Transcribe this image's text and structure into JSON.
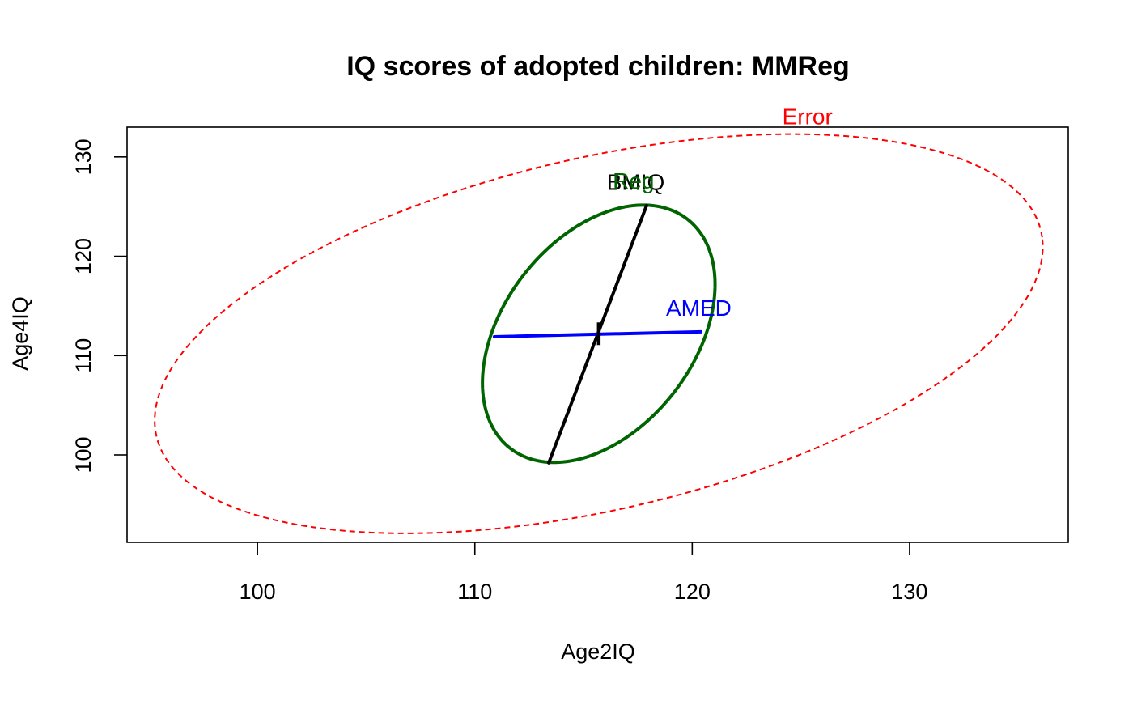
{
  "chart_data": {
    "type": "scatter",
    "title": "IQ scores of adopted children: MMReg",
    "xlabel": "Age2IQ",
    "ylabel": "Age4IQ",
    "xlim": [
      94,
      137.3
    ],
    "ylim": [
      91.2,
      133
    ],
    "xticks": [
      100,
      110,
      120,
      130
    ],
    "yticks": [
      100,
      110,
      120,
      130
    ],
    "grid": false,
    "center": [
      115.7,
      112.2
    ],
    "error_ellipse": {
      "label": "Error",
      "color": "#ff0000",
      "dash": true,
      "center": [
        115.7,
        112.2
      ],
      "axes": [
        [
          20.4,
          9.7
        ],
        [
          -1.1,
          17.6
        ]
      ],
      "label_pos": [
        125.3,
        133.3
      ]
    },
    "reg_ellipse": {
      "label": "Reg",
      "color": "#006400",
      "center": [
        115.7,
        112.2
      ],
      "axes": [
        [
          2.15,
          12.95
        ],
        [
          -4.9,
          0.26
        ]
      ],
      "label_pos": [
        117.3,
        126.8
      ]
    },
    "vectors": [
      {
        "label": "BMIQ",
        "color": "#000000",
        "from": [
          113.4,
          99.2
        ],
        "to": [
          117.9,
          125.1
        ],
        "label_pos": [
          117.4,
          126.7
        ]
      },
      {
        "label": "AMED",
        "color": "#0000ff",
        "from": [
          110.9,
          111.9
        ],
        "to": [
          120.4,
          112.4
        ],
        "label_pos": [
          120.3,
          114.0
        ]
      }
    ]
  }
}
